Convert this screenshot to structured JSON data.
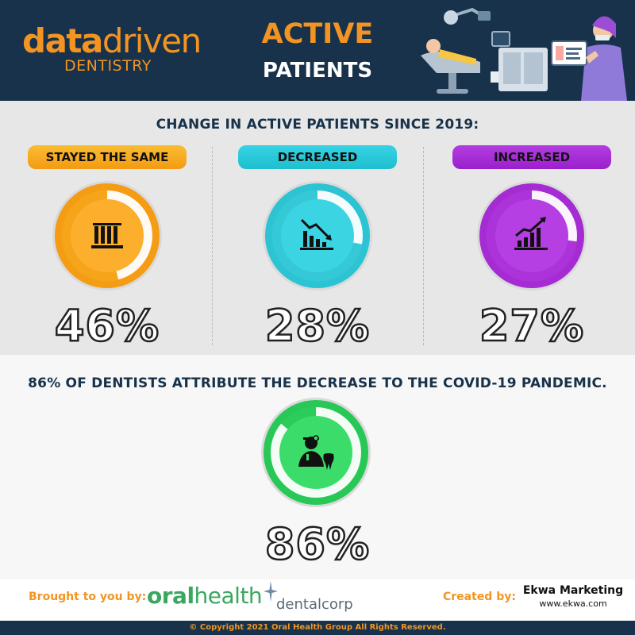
{
  "header": {
    "logo_data": "data",
    "logo_driven": "driven",
    "logo_sub": "DENTISTRY",
    "title_line1": "ACTIVE",
    "title_line2": "PATIENTS"
  },
  "section1": {
    "title": "CHANGE IN ACTIVE PATIENTS SINCE 2019:",
    "categories": [
      {
        "label": "STAYED THE SAME",
        "percent_text": "46%",
        "value": 46,
        "color": "#f8a31b",
        "icon": "columns-icon"
      },
      {
        "label": "DECREASED",
        "percent_text": "28%",
        "value": 28,
        "color": "#2fc7d6",
        "icon": "chart-down-icon"
      },
      {
        "label": "INCREASED",
        "percent_text": "27%",
        "value": 27,
        "color": "#a42cd3",
        "icon": "chart-up-icon"
      }
    ]
  },
  "section2": {
    "title": "86% OF DENTISTS ATTRIBUTE THE DECREASE TO THE COVID-19 PANDEMIC.",
    "percent_text": "86%",
    "value": 86,
    "color": "#2dd05c",
    "icon": "dentist-icon"
  },
  "footer": {
    "brought_by": "Brought to you by:",
    "oralhealth_bold": "oral",
    "oralhealth_light": "health",
    "dentalcorp": "dentalcorp",
    "created_by": "Created by:",
    "ekwa_name": "Ekwa Marketing",
    "ekwa_url": "www.ekwa.com",
    "copyright": "© Copyright 2021 Oral Health Group All Rights Reserved."
  },
  "colors": {
    "navy": "#17324a",
    "orange": "#f39422",
    "oralhealth_green": "#3aa75f"
  }
}
